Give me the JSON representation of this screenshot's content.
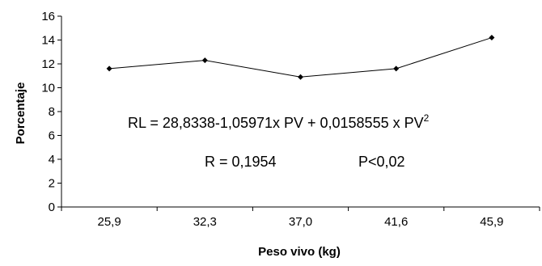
{
  "chart_data": {
    "type": "line",
    "categories": [
      "25,9",
      "32,3",
      "37,0",
      "41,6",
      "45,9"
    ],
    "series": [
      {
        "values": [
          11.6,
          12.3,
          10.9,
          11.6,
          14.2
        ]
      }
    ],
    "xlabel": "Peso vivo (kg)",
    "ylabel": "Porcentaje",
    "ylim": [
      0,
      16
    ],
    "yticks": [
      0,
      2,
      4,
      6,
      8,
      10,
      12,
      14,
      16
    ],
    "grid": false,
    "marker": "diamond",
    "annotations": {
      "equation": "RL = 28,8338-1,05971x PV + 0,0158555 x PV",
      "equation_superscript": "2",
      "r_value": "R = 0,1954",
      "p_value": "P<0,02"
    }
  }
}
